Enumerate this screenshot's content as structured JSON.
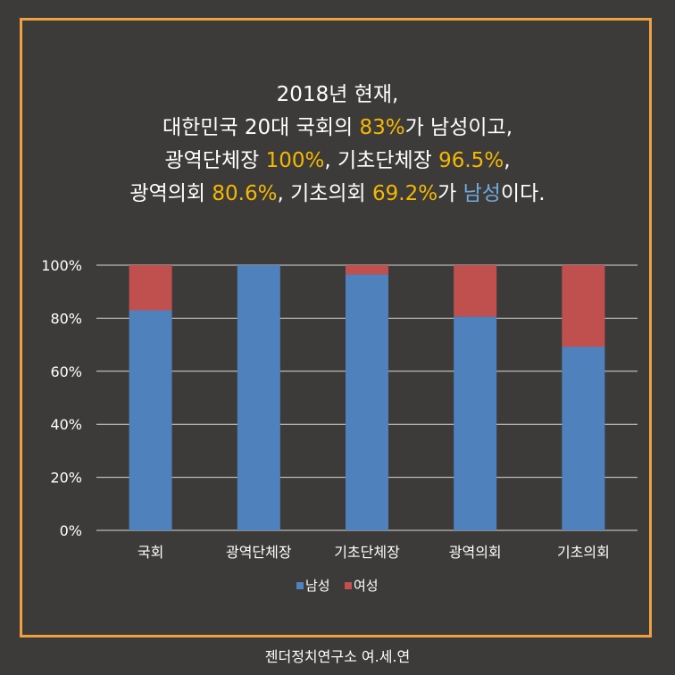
{
  "headline": {
    "line1": "2018년 현재,",
    "line2": [
      {
        "t": "대한민국 20대 국회의 ",
        "hl": ""
      },
      {
        "t": "83%",
        "hl": "num"
      },
      {
        "t": "가 남성이고,",
        "hl": ""
      }
    ],
    "line3": [
      {
        "t": "광역단체장 ",
        "hl": ""
      },
      {
        "t": "100%",
        "hl": "num"
      },
      {
        "t": ", 기초단체장 ",
        "hl": ""
      },
      {
        "t": "96.5%",
        "hl": "num"
      },
      {
        "t": ",",
        "hl": ""
      }
    ],
    "line4": [
      {
        "t": "광역의회 ",
        "hl": ""
      },
      {
        "t": "80.6%",
        "hl": "num"
      },
      {
        "t": ", 기초의회 ",
        "hl": ""
      },
      {
        "t": "69.2%",
        "hl": "num"
      },
      {
        "t": "가 ",
        "hl": ""
      },
      {
        "t": "남성",
        "hl": "blue"
      },
      {
        "t": "이다.",
        "hl": ""
      }
    ]
  },
  "colors": {
    "frame": "#f0a040",
    "background": "#3d3b3a",
    "highlight_number": "#f5b800",
    "highlight_blue": "#6fa8dc",
    "male": "#4f81bd",
    "female": "#c0504d",
    "gridline": "#d9d9d9"
  },
  "chart_data": {
    "type": "bar",
    "stacked": true,
    "percent": true,
    "categories": [
      "국회",
      "광역단체장",
      "기초단체장",
      "광역의회",
      "기초의회"
    ],
    "series": [
      {
        "name": "남성",
        "values": [
          83,
          100,
          96.5,
          80.6,
          69.2
        ]
      },
      {
        "name": "여성",
        "values": [
          17,
          0,
          3.5,
          19.4,
          30.8
        ]
      }
    ],
    "ylim": [
      0,
      100
    ],
    "yticks": [
      "0%",
      "20%",
      "40%",
      "60%",
      "80%",
      "100%"
    ],
    "grid": true,
    "legend": "bottom"
  },
  "footer": "젠더정치연구소 여.세.연"
}
